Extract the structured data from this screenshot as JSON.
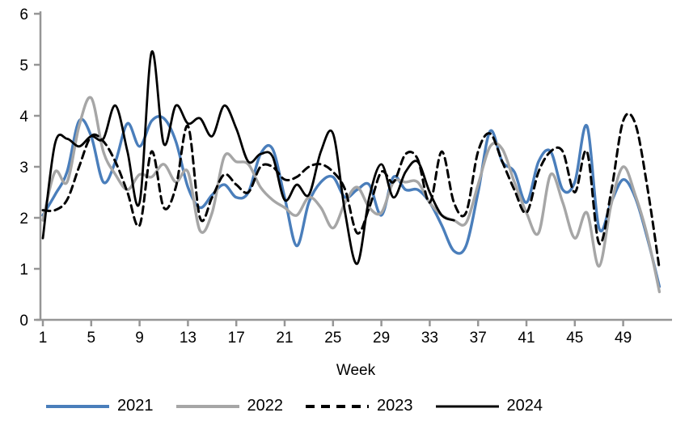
{
  "chart_data": {
    "type": "line",
    "title": "",
    "xlabel": "Week",
    "ylabel": "",
    "x_range": [
      1,
      52
    ],
    "ylim": [
      0,
      6
    ],
    "y_ticks": [
      0,
      1,
      2,
      3,
      4,
      5,
      6
    ],
    "x_ticks": [
      1,
      5,
      9,
      13,
      17,
      21,
      25,
      29,
      33,
      37,
      41,
      45,
      49
    ],
    "grid": false,
    "legend_position": "bottom",
    "axis_color": "#969696",
    "x": [
      1,
      2,
      3,
      4,
      5,
      6,
      7,
      8,
      9,
      10,
      11,
      12,
      13,
      14,
      15,
      16,
      17,
      18,
      19,
      20,
      21,
      22,
      23,
      24,
      25,
      26,
      27,
      28,
      29,
      30,
      31,
      32,
      33,
      34,
      35,
      36,
      37,
      38,
      39,
      40,
      41,
      42,
      43,
      44,
      45,
      46,
      47,
      48,
      49,
      50,
      51,
      52
    ],
    "series": [
      {
        "name": "2021",
        "color": "#4a7ebb",
        "style": "solid",
        "width": 3.4,
        "values": [
          2.05,
          2.45,
          2.9,
          3.9,
          3.6,
          2.7,
          3.1,
          3.85,
          3.4,
          3.9,
          3.95,
          3.5,
          2.6,
          2.2,
          2.45,
          2.65,
          2.4,
          2.5,
          3.25,
          3.35,
          2.4,
          1.45,
          2.3,
          2.7,
          2.8,
          2.4,
          2.55,
          2.65,
          2.05,
          2.8,
          2.55,
          2.55,
          2.3,
          1.85,
          1.35,
          1.45,
          2.5,
          3.7,
          3.1,
          2.9,
          2.3,
          3.1,
          3.3,
          2.55,
          2.7,
          3.8,
          1.8,
          2.3,
          2.75,
          2.4,
          1.6,
          0.65
        ]
      },
      {
        "name": "2022",
        "color": "#a6a6a6",
        "style": "solid",
        "width": 3.4,
        "values": [
          1.95,
          2.9,
          2.7,
          3.8,
          4.35,
          3.3,
          2.85,
          2.55,
          2.85,
          2.8,
          3.05,
          2.7,
          2.9,
          1.75,
          2.1,
          3.2,
          3.1,
          3.05,
          2.6,
          2.35,
          2.2,
          2.05,
          2.4,
          2.2,
          1.8,
          2.3,
          2.6,
          2.2,
          2.1,
          2.7,
          2.7,
          2.7,
          2.3,
          2.05,
          1.95,
          1.9,
          2.65,
          3.4,
          3.35,
          2.7,
          2.1,
          1.7,
          2.85,
          2.3,
          1.6,
          2.1,
          1.05,
          2.25,
          3.0,
          2.45,
          1.65,
          0.55
        ]
      },
      {
        "name": "2023",
        "color": "#000000",
        "style": "dashed",
        "width": 3,
        "values": [
          2.15,
          2.15,
          2.35,
          3.0,
          3.6,
          3.5,
          3.1,
          2.5,
          1.85,
          3.3,
          2.2,
          2.6,
          3.8,
          2.0,
          2.4,
          2.85,
          2.65,
          2.5,
          3.0,
          3.0,
          2.75,
          2.8,
          3.0,
          3.05,
          2.9,
          2.55,
          1.7,
          2.2,
          2.9,
          2.7,
          3.25,
          3.15,
          2.3,
          3.3,
          2.3,
          2.1,
          3.3,
          3.65,
          3.1,
          2.55,
          2.1,
          2.9,
          3.3,
          3.3,
          2.5,
          3.3,
          1.5,
          2.5,
          3.9,
          3.85,
          2.6,
          1.0
        ]
      },
      {
        "name": "2024",
        "color": "#000000",
        "style": "solid",
        "width": 2.8,
        "values": [
          1.6,
          3.45,
          3.55,
          3.4,
          3.6,
          3.55,
          4.2,
          3.3,
          2.3,
          5.25,
          3.45,
          4.2,
          3.85,
          3.95,
          3.6,
          4.2,
          3.75,
          3.1,
          3.25,
          3.2,
          2.35,
          2.65,
          2.45,
          3.3,
          3.65,
          2.1,
          1.1,
          2.4,
          3.05,
          2.4,
          2.9,
          3.1,
          2.5,
          2.05,
          1.95
        ]
      }
    ]
  }
}
